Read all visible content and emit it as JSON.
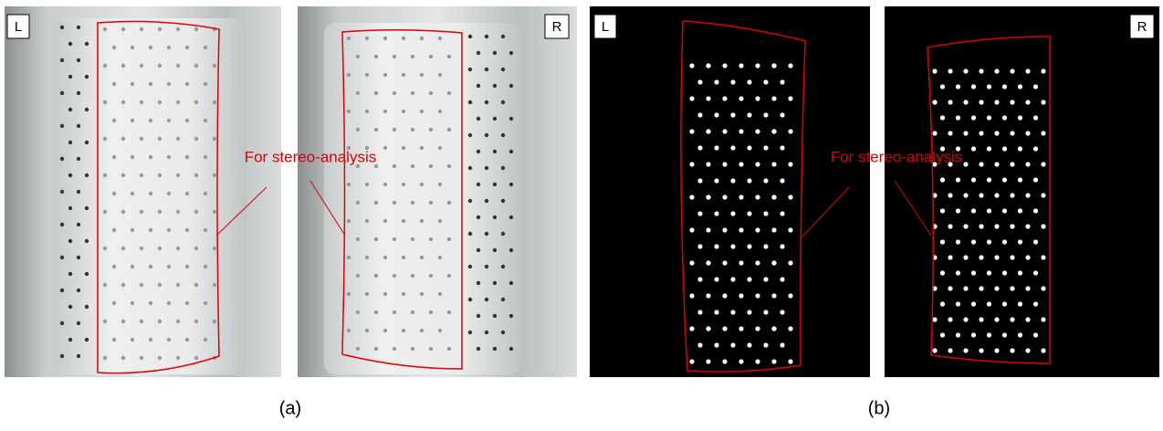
{
  "panels": [
    {
      "label": "L"
    },
    {
      "label": "R"
    },
    {
      "label": "L"
    },
    {
      "label": "R"
    }
  ],
  "annotations": [
    {
      "text": "For stereo-analysis"
    },
    {
      "text": "For stereo-analysis"
    }
  ],
  "captions": [
    "(a)",
    "(b)"
  ]
}
